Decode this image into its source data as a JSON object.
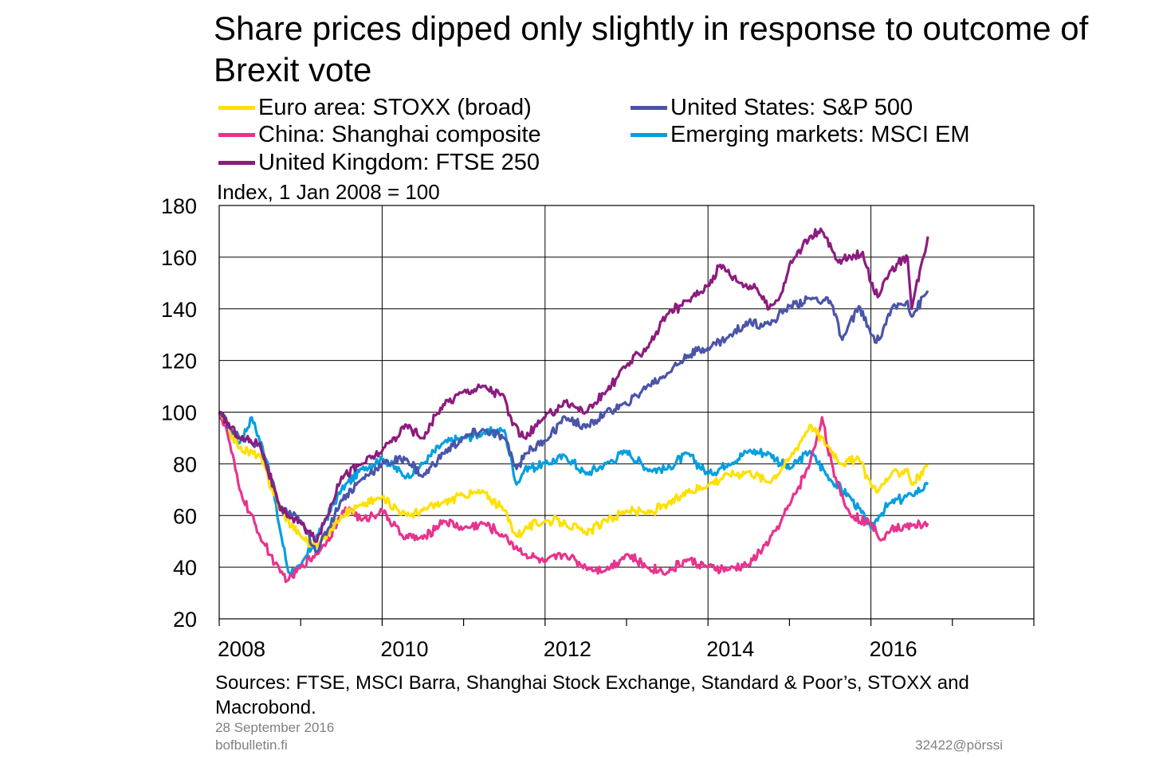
{
  "title": "Share prices dipped only slightly in response to outcome of Brexit vote",
  "unit_label": "Index, 1 Jan 2008 = 100",
  "sources": "Sources: FTSE, MSCI Barra, Shanghai Stock Exchange, Standard & Poor’s, STOXX and Macrobond.",
  "footer": {
    "date": "28 September 2016",
    "site": "bofbulletin.fi",
    "code": "32422@pörssi"
  },
  "chart_data": {
    "type": "line",
    "title": "Share prices dipped only slightly in response to outcome of Brexit vote",
    "ylabel": "Index, 1 Jan 2008 = 100",
    "xlabel": "",
    "xlim": [
      2008,
      2018
    ],
    "ylim": [
      20,
      180
    ],
    "x_ticks": [
      2008,
      2010,
      2012,
      2014,
      2016
    ],
    "y_ticks": [
      20,
      40,
      60,
      80,
      100,
      120,
      140,
      160,
      180
    ],
    "grid": true,
    "legend_position": "top",
    "series": [
      {
        "name": "Euro area: STOXX (broad)",
        "color": "#FFE000",
        "x": [
          2008.0,
          2008.25,
          2008.5,
          2008.75,
          2009.0,
          2009.2,
          2009.5,
          2009.75,
          2010.0,
          2010.3,
          2010.5,
          2010.75,
          2011.0,
          2011.25,
          2011.5,
          2011.65,
          2011.75,
          2012.0,
          2012.25,
          2012.5,
          2012.75,
          2013.0,
          2013.25,
          2013.5,
          2013.75,
          2014.0,
          2014.25,
          2014.5,
          2014.75,
          2015.0,
          2015.25,
          2015.5,
          2015.65,
          2015.85,
          2016.0,
          2016.1,
          2016.25,
          2016.45,
          2016.5,
          2016.7
        ],
        "values": [
          100,
          86,
          83,
          62,
          52,
          48,
          60,
          64,
          67,
          60,
          62,
          65,
          68,
          69,
          62,
          52,
          55,
          58,
          57,
          53,
          58,
          62,
          61,
          64,
          69,
          72,
          76,
          77,
          73,
          82,
          95,
          86,
          80,
          82,
          72,
          70,
          76,
          78,
          72,
          79
        ]
      },
      {
        "name": "United States: S&P 500",
        "color": "#4A55A8",
        "x": [
          2008.0,
          2008.25,
          2008.5,
          2008.75,
          2009.0,
          2009.2,
          2009.5,
          2009.75,
          2010.0,
          2010.3,
          2010.5,
          2010.75,
          2011.0,
          2011.25,
          2011.5,
          2011.65,
          2011.75,
          2012.0,
          2012.25,
          2012.5,
          2012.75,
          2013.0,
          2013.25,
          2013.5,
          2013.75,
          2014.0,
          2014.25,
          2014.5,
          2014.75,
          2015.0,
          2015.25,
          2015.5,
          2015.65,
          2015.85,
          2016.0,
          2016.1,
          2016.25,
          2016.45,
          2016.5,
          2016.7
        ],
        "values": [
          100,
          90,
          87,
          63,
          58,
          46,
          66,
          74,
          80,
          82,
          75,
          84,
          90,
          93,
          90,
          78,
          84,
          89,
          98,
          94,
          100,
          103,
          110,
          115,
          122,
          125,
          129,
          135,
          134,
          141,
          144,
          143,
          128,
          141,
          130,
          128,
          140,
          143,
          137,
          147
        ]
      },
      {
        "name": "China: Shanghai composite",
        "color": "#E8338E",
        "x": [
          2008.0,
          2008.1,
          2008.25,
          2008.5,
          2008.75,
          2008.85,
          2009.0,
          2009.25,
          2009.5,
          2009.6,
          2009.75,
          2010.0,
          2010.25,
          2010.5,
          2010.75,
          2011.0,
          2011.25,
          2011.5,
          2011.75,
          2012.0,
          2012.25,
          2012.5,
          2012.75,
          2013.0,
          2013.25,
          2013.5,
          2013.75,
          2014.0,
          2014.25,
          2014.5,
          2014.75,
          2014.9,
          2015.0,
          2015.25,
          2015.4,
          2015.55,
          2015.75,
          2016.0,
          2016.1,
          2016.25,
          2016.5,
          2016.7
        ],
        "values": [
          100,
          92,
          70,
          52,
          38,
          35,
          40,
          47,
          60,
          63,
          58,
          62,
          52,
          51,
          58,
          55,
          57,
          52,
          45,
          42,
          45,
          40,
          39,
          45,
          40,
          38,
          43,
          40,
          39,
          41,
          50,
          58,
          64,
          80,
          98,
          75,
          60,
          57,
          51,
          55,
          56,
          57
        ]
      },
      {
        "name": "Emerging markets: MSCI EM",
        "color": "#009FDF",
        "x": [
          2008.0,
          2008.25,
          2008.4,
          2008.6,
          2008.75,
          2008.85,
          2009.0,
          2009.25,
          2009.5,
          2009.75,
          2010.0,
          2010.3,
          2010.5,
          2010.75,
          2011.0,
          2011.25,
          2011.5,
          2011.65,
          2011.75,
          2012.0,
          2012.25,
          2012.5,
          2012.75,
          2013.0,
          2013.25,
          2013.5,
          2013.75,
          2014.0,
          2014.25,
          2014.5,
          2014.75,
          2015.0,
          2015.25,
          2015.5,
          2015.75,
          2016.0,
          2016.1,
          2016.25,
          2016.5,
          2016.7
        ],
        "values": [
          100,
          88,
          98,
          80,
          54,
          38,
          40,
          55,
          70,
          78,
          82,
          75,
          80,
          88,
          90,
          92,
          93,
          72,
          78,
          80,
          83,
          76,
          80,
          85,
          78,
          78,
          84,
          76,
          80,
          85,
          84,
          78,
          85,
          74,
          67,
          55,
          60,
          65,
          68,
          72
        ]
      },
      {
        "name": "United Kingdom: FTSE 250",
        "color": "#8B1C7E",
        "x": [
          2008.0,
          2008.25,
          2008.5,
          2008.75,
          2008.85,
          2009.0,
          2009.2,
          2009.5,
          2009.75,
          2010.0,
          2010.3,
          2010.5,
          2010.75,
          2011.0,
          2011.25,
          2011.5,
          2011.6,
          2011.75,
          2012.0,
          2012.25,
          2012.5,
          2012.75,
          2013.0,
          2013.25,
          2013.5,
          2013.75,
          2014.0,
          2014.15,
          2014.4,
          2014.6,
          2014.75,
          2014.9,
          2015.0,
          2015.25,
          2015.4,
          2015.6,
          2015.75,
          2015.9,
          2016.0,
          2016.1,
          2016.25,
          2016.45,
          2016.5,
          2016.7
        ],
        "values": [
          100,
          90,
          88,
          62,
          60,
          57,
          50,
          75,
          80,
          85,
          95,
          90,
          103,
          108,
          110,
          106,
          95,
          90,
          98,
          104,
          100,
          108,
          118,
          125,
          138,
          143,
          149,
          157,
          150,
          148,
          140,
          146,
          157,
          168,
          170,
          158,
          160,
          162,
          150,
          145,
          155,
          160,
          140,
          168
        ]
      }
    ]
  }
}
